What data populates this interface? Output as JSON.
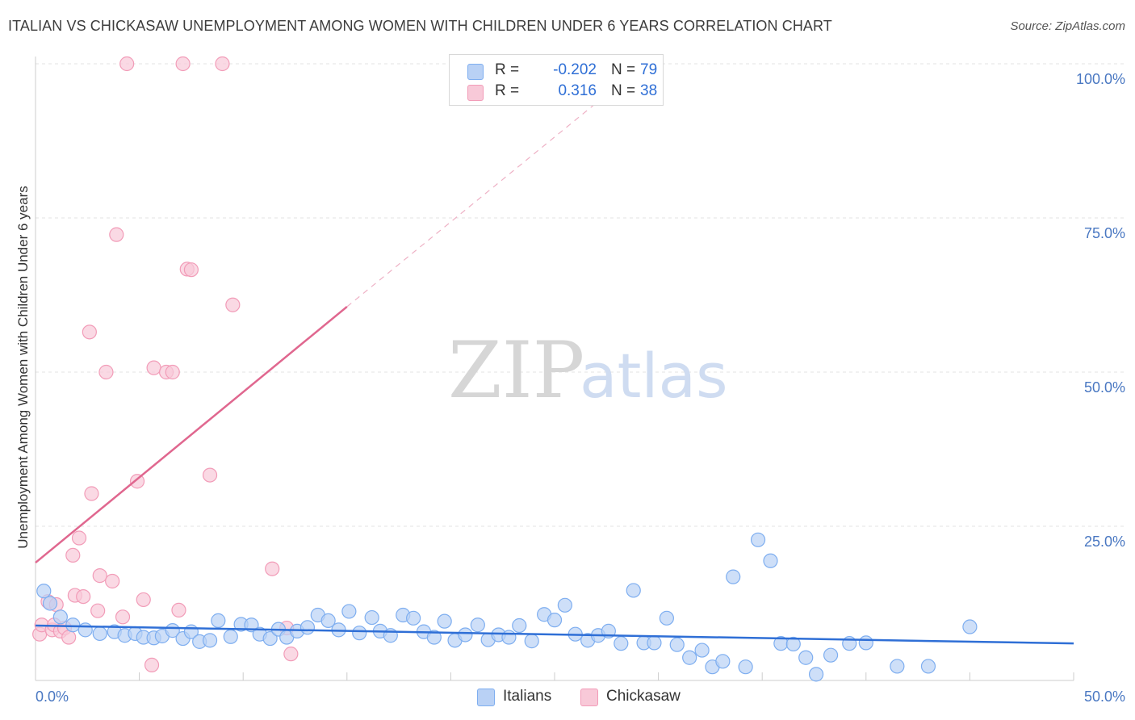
{
  "chart_data": {
    "type": "scatter",
    "title": "ITALIAN VS CHICKASAW UNEMPLOYMENT AMONG WOMEN WITH CHILDREN UNDER 6 YEARS CORRELATION CHART",
    "source": "Source: ZipAtlas.com",
    "xlabel": "",
    "ylabel": "Unemployment Among Women with Children Under 6 years",
    "xlim": [
      0,
      50
    ],
    "ylim": [
      0,
      100
    ],
    "x_tick_labels": [
      "0.0%",
      "50.0%"
    ],
    "y_ticks": [
      25,
      50,
      75,
      100
    ],
    "y_tick_labels": [
      "25.0%",
      "50.0%",
      "75.0%",
      "100.0%"
    ],
    "watermark": {
      "zip": "ZIP",
      "atlas": "atlas"
    },
    "legend_stats": [
      {
        "r_label": "R =",
        "r_value": "-0.202",
        "n_label": "N =",
        "n_value": "79"
      },
      {
        "r_label": "R =",
        "r_value": "0.316",
        "n_label": "N =",
        "n_value": "38"
      }
    ],
    "series": [
      {
        "name": "Italians",
        "color": "#7eaef0",
        "fill": "#b9d1f5",
        "line_color": "#2f6fd6",
        "trend": {
          "x0": 0,
          "y0": 8.9,
          "x1": 50,
          "y1": 6.0
        },
        "points": [
          [
            0.4,
            14.5
          ],
          [
            0.7,
            12.5
          ],
          [
            1.2,
            10.3
          ],
          [
            1.8,
            9.0
          ],
          [
            2.4,
            8.2
          ],
          [
            3.1,
            7.6
          ],
          [
            3.8,
            7.9
          ],
          [
            4.3,
            7.3
          ],
          [
            4.8,
            7.6
          ],
          [
            5.2,
            7.0
          ],
          [
            5.7,
            6.9
          ],
          [
            6.1,
            7.2
          ],
          [
            6.6,
            8.1
          ],
          [
            7.1,
            6.8
          ],
          [
            7.5,
            7.9
          ],
          [
            7.9,
            6.3
          ],
          [
            8.4,
            6.5
          ],
          [
            8.8,
            9.7
          ],
          [
            9.4,
            7.1
          ],
          [
            9.9,
            9.1
          ],
          [
            10.4,
            9.0
          ],
          [
            10.8,
            7.5
          ],
          [
            11.3,
            6.8
          ],
          [
            11.7,
            8.3
          ],
          [
            12.1,
            7.0
          ],
          [
            12.6,
            8.0
          ],
          [
            13.1,
            8.6
          ],
          [
            13.6,
            10.6
          ],
          [
            14.1,
            9.7
          ],
          [
            14.6,
            8.2
          ],
          [
            15.1,
            11.2
          ],
          [
            15.6,
            7.7
          ],
          [
            16.2,
            10.2
          ],
          [
            16.6,
            8.0
          ],
          [
            17.1,
            7.3
          ],
          [
            17.7,
            10.6
          ],
          [
            18.2,
            10.1
          ],
          [
            18.7,
            7.9
          ],
          [
            19.2,
            7.0
          ],
          [
            19.7,
            9.6
          ],
          [
            20.2,
            6.5
          ],
          [
            20.7,
            7.4
          ],
          [
            21.3,
            9.0
          ],
          [
            21.8,
            6.6
          ],
          [
            22.3,
            7.4
          ],
          [
            22.8,
            7.0
          ],
          [
            23.3,
            8.9
          ],
          [
            23.9,
            6.4
          ],
          [
            24.5,
            10.7
          ],
          [
            25.0,
            9.8
          ],
          [
            25.5,
            12.2
          ],
          [
            26.0,
            7.5
          ],
          [
            26.6,
            6.5
          ],
          [
            27.1,
            7.3
          ],
          [
            27.6,
            8.0
          ],
          [
            28.2,
            6.0
          ],
          [
            28.8,
            14.6
          ],
          [
            29.3,
            6.1
          ],
          [
            29.8,
            6.1
          ],
          [
            30.4,
            10.1
          ],
          [
            30.9,
            5.8
          ],
          [
            31.5,
            3.7
          ],
          [
            32.1,
            4.9
          ],
          [
            32.6,
            2.2
          ],
          [
            33.1,
            3.1
          ],
          [
            33.6,
            16.8
          ],
          [
            34.2,
            2.2
          ],
          [
            34.8,
            22.8
          ],
          [
            35.4,
            19.4
          ],
          [
            35.9,
            6.0
          ],
          [
            36.5,
            5.9
          ],
          [
            37.1,
            3.7
          ],
          [
            37.6,
            1.0
          ],
          [
            38.3,
            4.1
          ],
          [
            39.2,
            6.0
          ],
          [
            40.0,
            6.1
          ],
          [
            41.5,
            2.3
          ],
          [
            43.0,
            2.3
          ],
          [
            45.0,
            8.7
          ]
        ]
      },
      {
        "name": "Chickasaw",
        "color": "#f29cb8",
        "fill": "#f8c9d8",
        "line_color": "#e0678f",
        "trend": {
          "x0": 0,
          "y0": 19.1,
          "x1": 15,
          "y1": 60.6
        },
        "trend_dashed_to": {
          "x": 27.5,
          "y": 95.0
        },
        "points": [
          [
            0.2,
            7.5
          ],
          [
            0.3,
            9.0
          ],
          [
            0.6,
            12.8
          ],
          [
            0.8,
            8.2
          ],
          [
            0.9,
            9.0
          ],
          [
            1.0,
            12.3
          ],
          [
            1.2,
            8.0
          ],
          [
            1.4,
            8.5
          ],
          [
            1.6,
            7.0
          ],
          [
            1.8,
            20.3
          ],
          [
            1.9,
            13.8
          ],
          [
            2.1,
            23.1
          ],
          [
            2.3,
            13.6
          ],
          [
            2.6,
            56.5
          ],
          [
            2.7,
            30.3
          ],
          [
            3.0,
            11.3
          ],
          [
            3.1,
            17.0
          ],
          [
            3.4,
            50.0
          ],
          [
            3.7,
            16.1
          ],
          [
            3.9,
            72.3
          ],
          [
            4.2,
            10.3
          ],
          [
            4.4,
            100.0
          ],
          [
            4.9,
            32.3
          ],
          [
            5.2,
            13.1
          ],
          [
            5.6,
            2.5
          ],
          [
            5.7,
            50.7
          ],
          [
            6.3,
            50.0
          ],
          [
            6.6,
            50.0
          ],
          [
            6.9,
            11.4
          ],
          [
            7.1,
            100.0
          ],
          [
            7.3,
            66.7
          ],
          [
            7.5,
            66.6
          ],
          [
            8.4,
            33.3
          ],
          [
            9.0,
            100.0
          ],
          [
            9.5,
            60.9
          ],
          [
            11.4,
            18.1
          ],
          [
            12.1,
            8.5
          ],
          [
            12.3,
            4.3
          ]
        ]
      }
    ]
  }
}
